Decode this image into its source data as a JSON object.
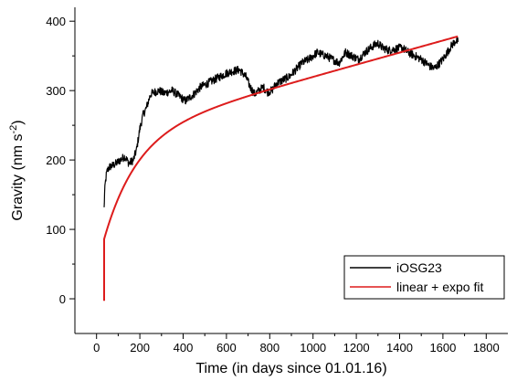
{
  "chart_data": {
    "type": "line",
    "xlabel": "Time (in days since 01.01.16)",
    "ylabel_main": "Gravity (nm s",
    "ylabel_sup": "-2",
    "ylabel_tail": ")",
    "xlim": [
      -100,
      1900
    ],
    "ylim": [
      -50,
      420
    ],
    "xticks": [
      0,
      200,
      400,
      600,
      800,
      1000,
      1200,
      1400,
      1600,
      1800
    ],
    "yticks": [
      0,
      100,
      200,
      300,
      400
    ],
    "grid": false,
    "legend_position": "bottom-right",
    "series": [
      {
        "name": "iOSG23",
        "color": "#000000",
        "x": [
          35,
          37,
          40,
          45,
          50,
          60,
          75,
          90,
          110,
          130,
          150,
          170,
          185,
          200,
          215,
          230,
          250,
          270,
          290,
          310,
          330,
          350,
          370,
          390,
          410,
          430,
          450,
          480,
          510,
          540,
          570,
          600,
          630,
          660,
          690,
          710,
          730,
          750,
          770,
          790,
          810,
          830,
          860,
          890,
          920,
          950,
          980,
          1000,
          1020,
          1040,
          1060,
          1090,
          1120,
          1150,
          1180,
          1210,
          1240,
          1260,
          1280,
          1300,
          1320,
          1350,
          1380,
          1410,
          1440,
          1470,
          1500,
          1520,
          1540,
          1560,
          1580,
          1600,
          1620,
          1640,
          1660,
          1670
        ],
        "y": [
          130,
          150,
          165,
          178,
          185,
          190,
          192,
          195,
          200,
          205,
          195,
          200,
          215,
          245,
          265,
          275,
          295,
          298,
          300,
          296,
          298,
          300,
          295,
          290,
          285,
          290,
          295,
          305,
          310,
          315,
          320,
          325,
          328,
          330,
          320,
          305,
          295,
          300,
          305,
          298,
          300,
          310,
          315,
          320,
          330,
          340,
          345,
          350,
          355,
          352,
          350,
          345,
          340,
          355,
          350,
          345,
          355,
          360,
          365,
          368,
          362,
          358,
          360,
          362,
          355,
          350,
          345,
          340,
          335,
          332,
          338,
          345,
          355,
          365,
          372,
          370
        ]
      },
      {
        "name": "linear + expo fit",
        "color": "#dd1c1c",
        "model": {
          "a": 236,
          "b": 0.087,
          "c": 150,
          "tau": 150,
          "t0": 35
        },
        "x_range": [
          35,
          1670
        ]
      }
    ]
  }
}
